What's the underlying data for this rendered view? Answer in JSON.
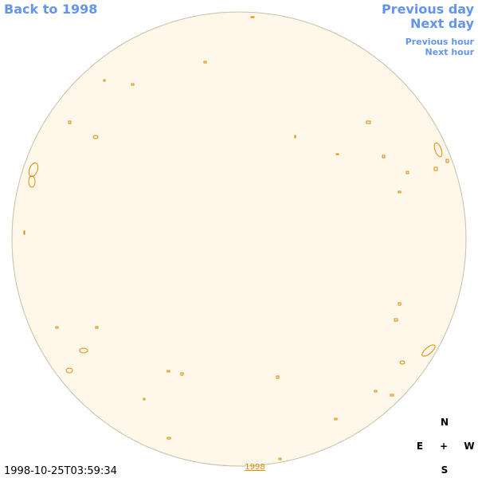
{
  "nav": {
    "back": "Back to 1998",
    "previous_day": "Previous day",
    "next_day": "Next day",
    "previous_hour": "Previous hour",
    "next_hour": "Next hour"
  },
  "image": {
    "timestamp": "1998-10-25T03:59:34",
    "year_link": "1998"
  },
  "compass": {
    "north": "N",
    "east": "E",
    "center": "+",
    "west": "W",
    "south": "S"
  }
}
